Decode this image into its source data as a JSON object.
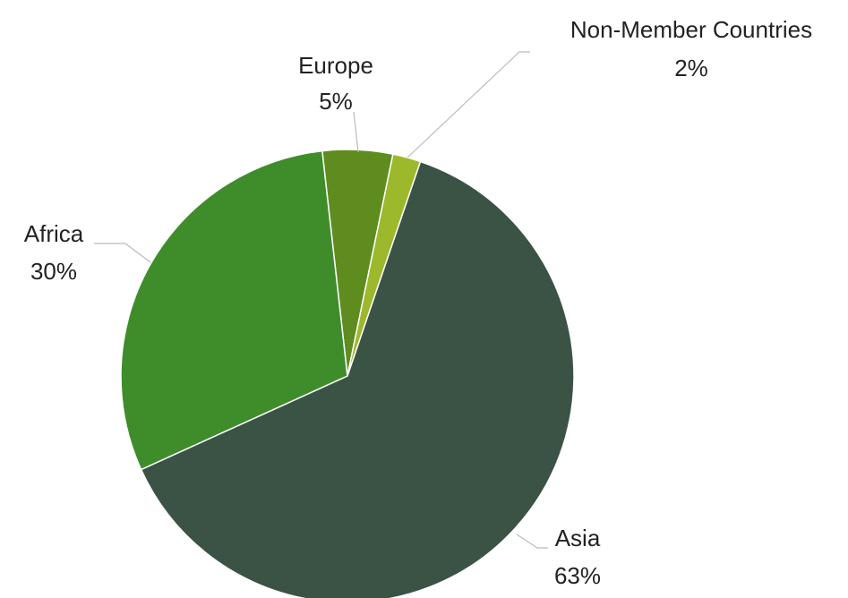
{
  "chart_data": {
    "type": "pie",
    "categories": [
      "Europe",
      "Non-Member Countries",
      "Asia",
      "Africa"
    ],
    "values": [
      5,
      2,
      63,
      30
    ],
    "value_labels": [
      "5%",
      "2%",
      "63%",
      "30%"
    ],
    "colors": [
      "#5f8c1f",
      "#9cb82b",
      "#3a5345",
      "#3f8c2b"
    ]
  }
}
